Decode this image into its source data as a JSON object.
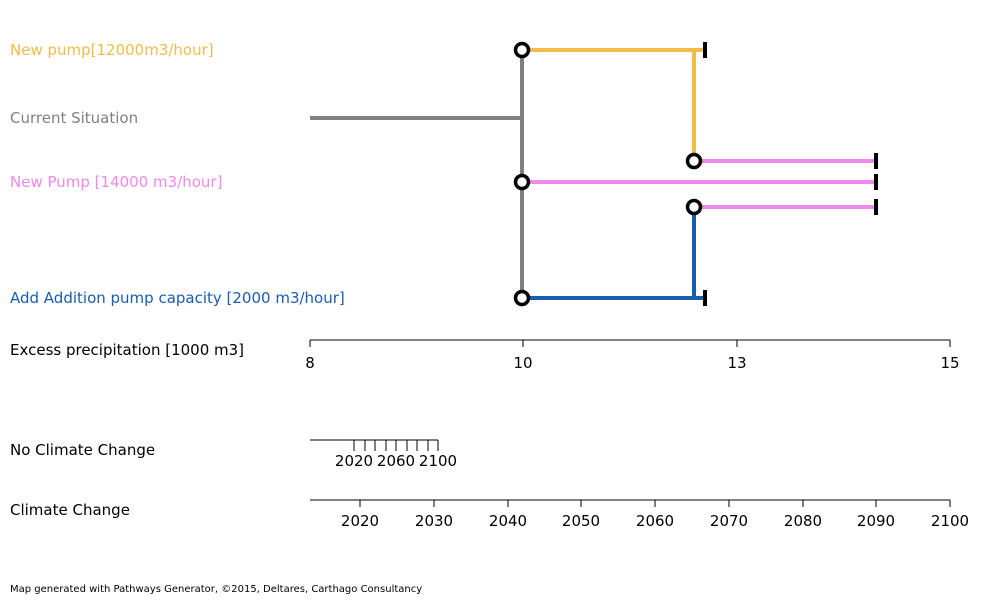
{
  "pathways": [
    {
      "name": "New pump[12000m3/hour]",
      "color": "#efbc4a"
    },
    {
      "name": "Current Situation",
      "color": "#808080"
    },
    {
      "name": "New Pump [14000 m3/hour]",
      "color": "#f088ec"
    },
    {
      "name": "Add Addition pump capacity [2000 m3/hour]",
      "color": "#1a5cad"
    }
  ],
  "axes": {
    "precip": {
      "label": "Excess precipitation [1000 m3]",
      "ticks": [
        "8",
        "10",
        "13",
        "15"
      ]
    },
    "no_cc": {
      "label": "No Climate Change",
      "ticks": [
        "2020",
        "2060",
        "2100"
      ]
    },
    "cc": {
      "label": "Climate Change",
      "ticks": [
        "2020",
        "2030",
        "2040",
        "2050",
        "2060",
        "2070",
        "2080",
        "2090",
        "2100"
      ]
    }
  },
  "footer": "Map generated with Pathways Generator, ©2015, Deltares, Carthago Consultancy"
}
